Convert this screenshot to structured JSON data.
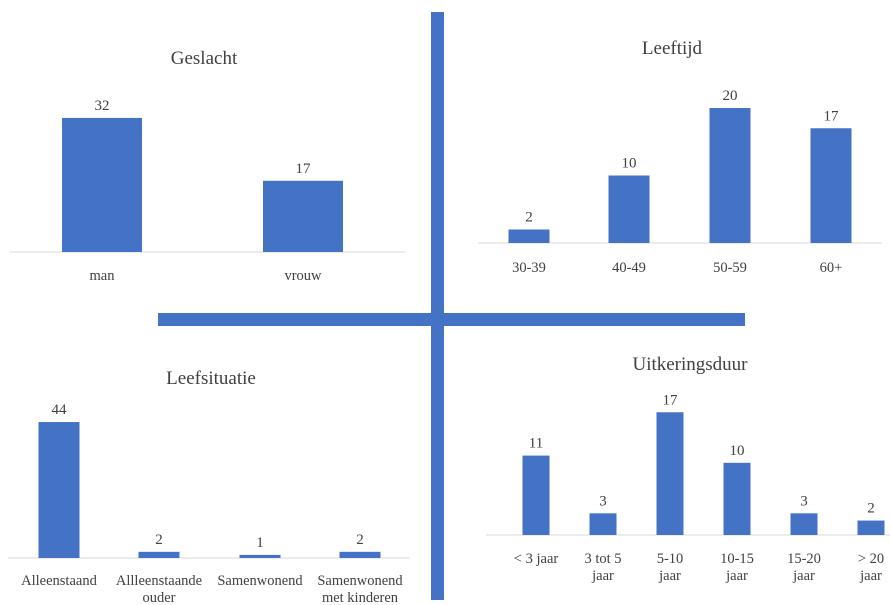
{
  "colors": {
    "bar": "#4472c4",
    "divider": "#4472c4",
    "baseline": "#d9d9d9",
    "text": "#404040"
  },
  "chart_data": [
    {
      "type": "bar",
      "title": "Geslacht",
      "categories": [
        [
          "man"
        ],
        [
          "vrouw"
        ]
      ],
      "values": [
        32,
        17
      ]
    },
    {
      "type": "bar",
      "title": "Leeftijd",
      "categories": [
        [
          "30-39"
        ],
        [
          "40-49"
        ],
        [
          "50-59"
        ],
        [
          "60+"
        ]
      ],
      "values": [
        2,
        10,
        20,
        17
      ]
    },
    {
      "type": "bar",
      "title": "Leefsituatie",
      "categories": [
        [
          "Alleenstaand"
        ],
        [
          "Allleenstaande",
          "ouder"
        ],
        [
          "Samenwonend"
        ],
        [
          "Samenwonend",
          "met kinderen"
        ]
      ],
      "values": [
        44,
        2,
        1,
        2
      ]
    },
    {
      "type": "bar",
      "title": "Uitkeringsduur",
      "categories": [
        [
          "< 3 jaar"
        ],
        [
          "3 tot 5",
          "jaar"
        ],
        [
          "5-10",
          "jaar"
        ],
        [
          "10-15",
          "jaar"
        ],
        [
          "15-20",
          "jaar"
        ],
        [
          "> 20",
          "jaar"
        ]
      ],
      "values": [
        11,
        3,
        17,
        10,
        3,
        2
      ]
    }
  ]
}
